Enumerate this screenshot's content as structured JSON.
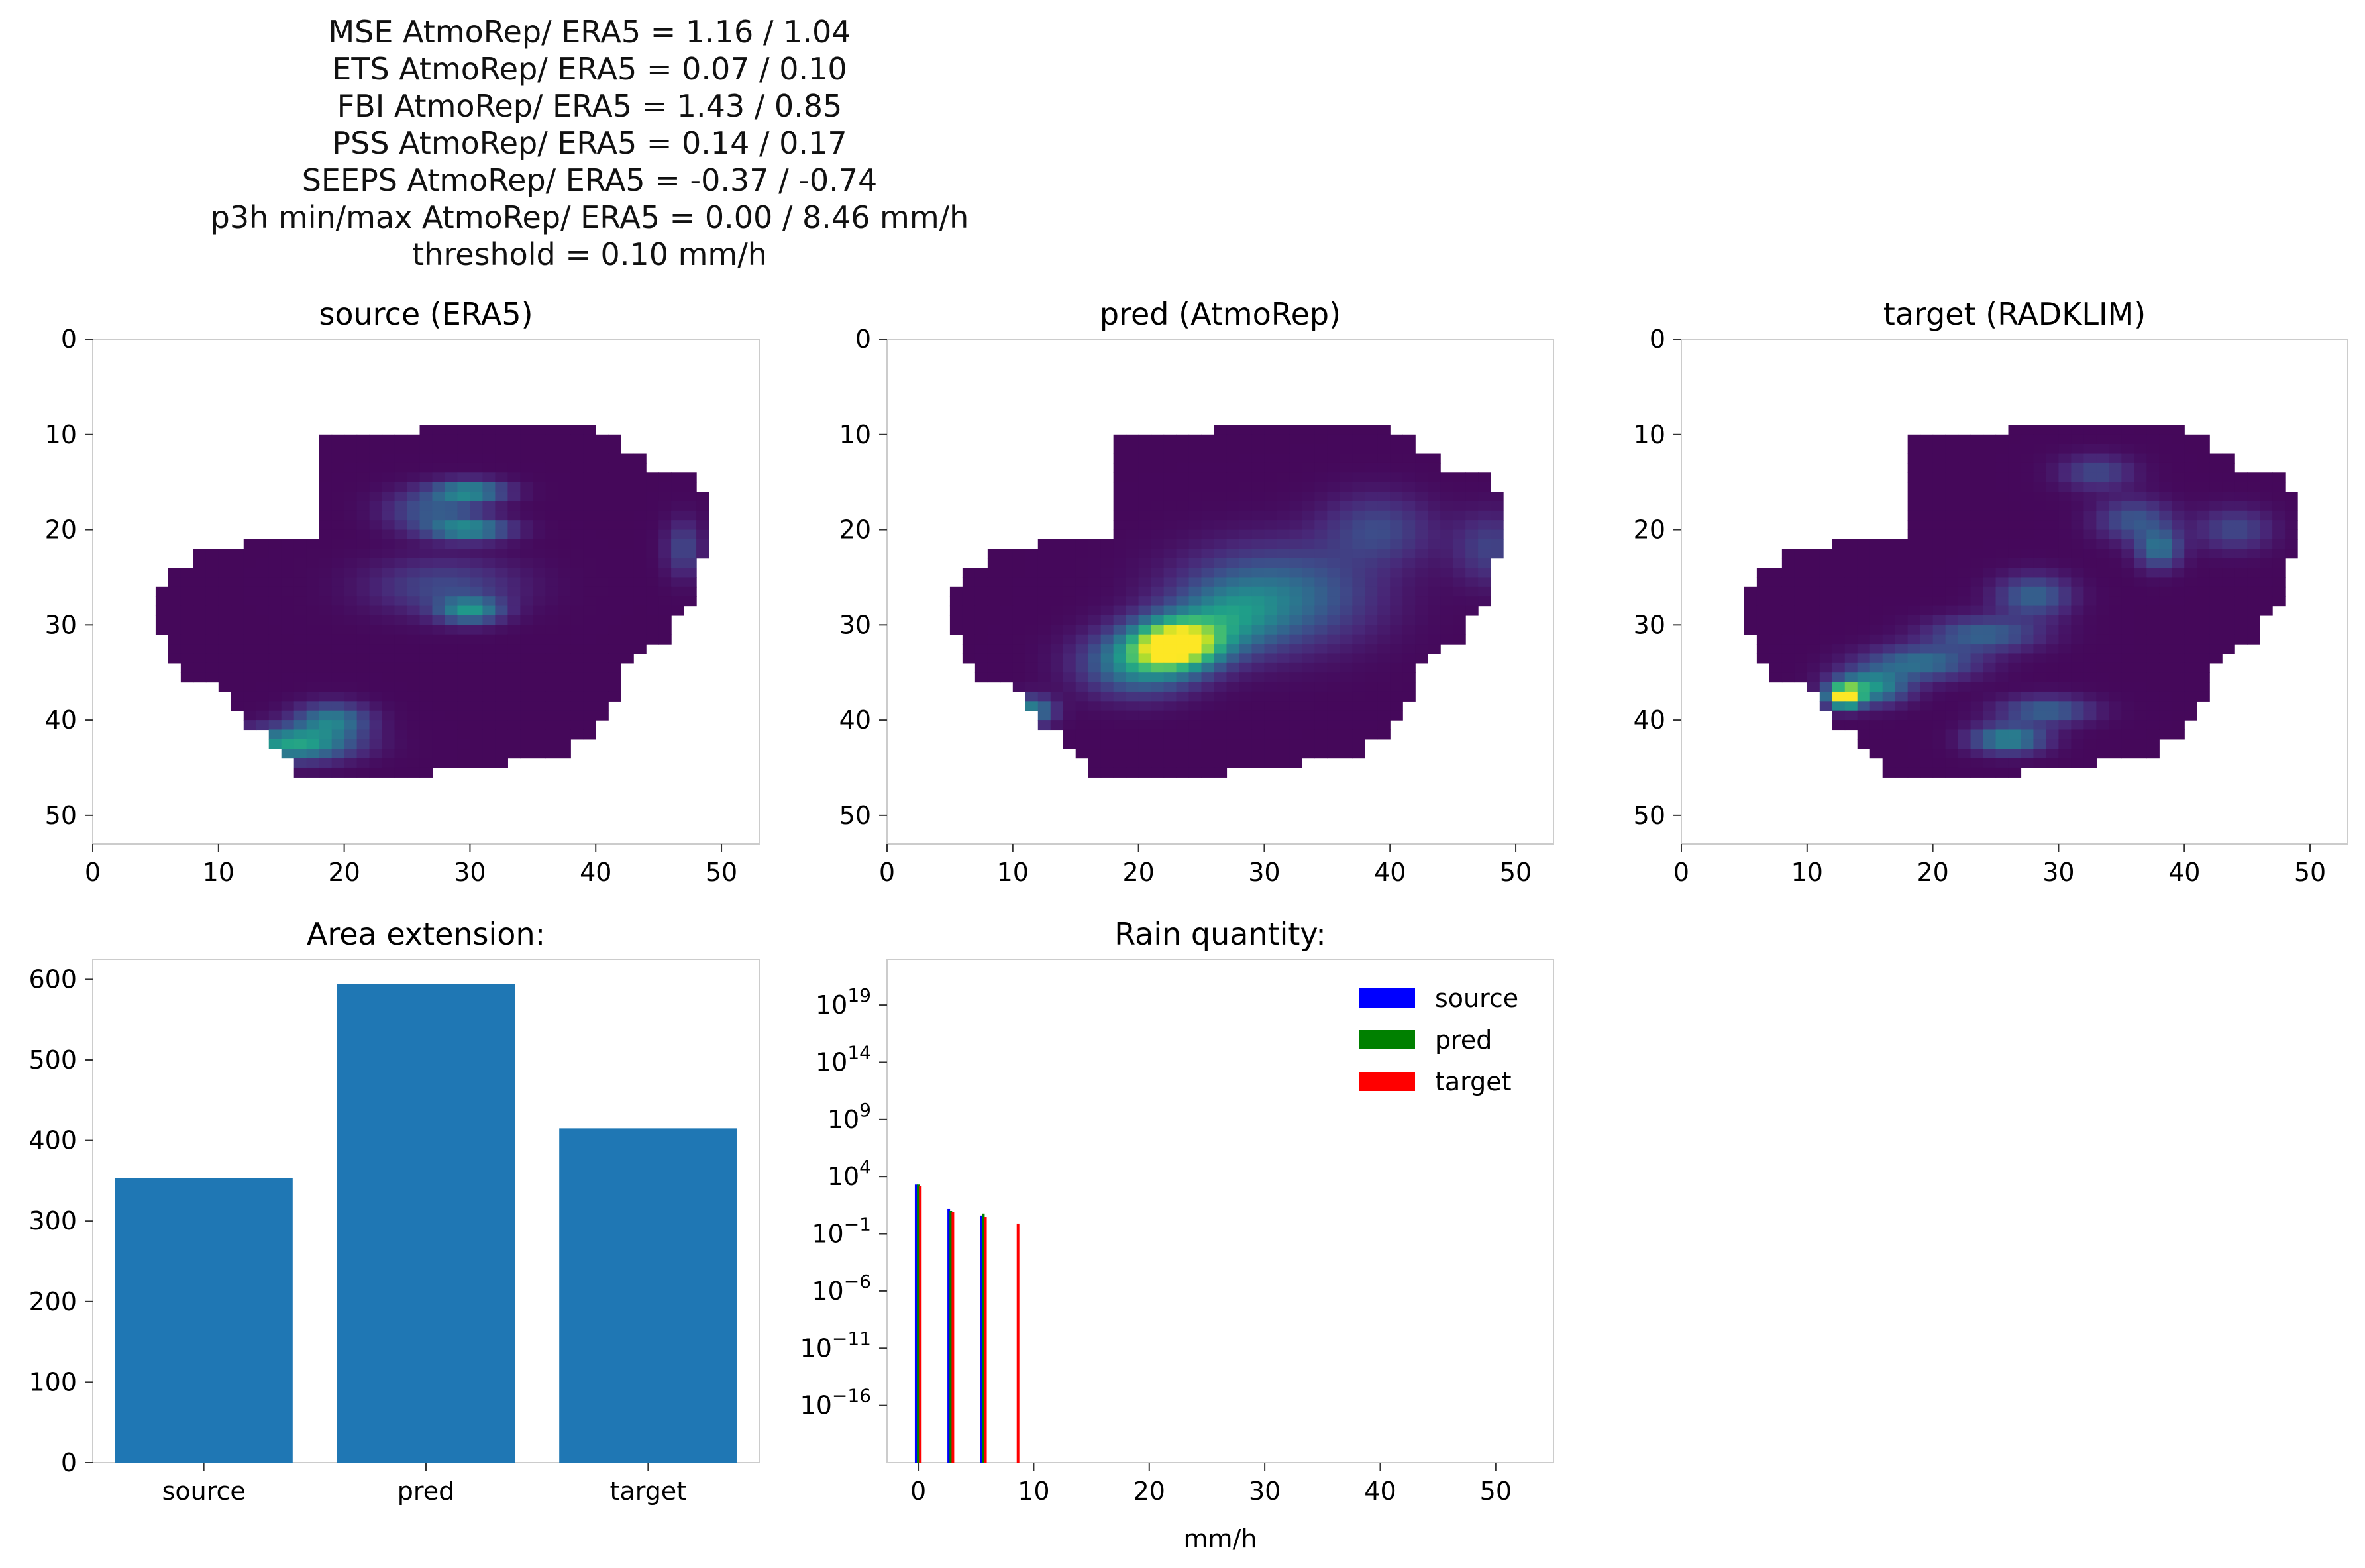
{
  "suptitle": [
    "MSE AtmoRep/ ERA5 = 1.16 / 1.04",
    "ETS AtmoRep/ ERA5 = 0.07 / 0.10",
    "FBI AtmoRep/ ERA5 = 1.43 / 0.85",
    "PSS AtmoRep/ ERA5 = 0.14 / 0.17",
    "SEEPS AtmoRep/ ERA5 = -0.37 / -0.74",
    "p3h min/max AtmoRep/ ERA5 = 0.00 / 8.46 mm/h",
    "threshold = 0.10 mm/h"
  ],
  "colors": {
    "heatmap_background": "#440154",
    "bar": "#1f77b4",
    "source": "#0000ff",
    "pred": "#008000",
    "target": "#ff0000",
    "axis": "#cccccc"
  },
  "chart_data": [
    {
      "type": "heatmap",
      "title": "source (ERA5)",
      "colormap": "viridis",
      "xlim": [
        0,
        53
      ],
      "ylim": [
        53,
        0
      ],
      "xticks": [
        "0",
        "10",
        "20",
        "30",
        "40",
        "50"
      ],
      "yticks": [
        "0",
        "10",
        "20",
        "30",
        "40",
        "50"
      ],
      "mask_rows": [
        [
          26,
          34,
          40
        ],
        [
          18,
          34,
          42
        ],
        [
          18,
          34,
          42
        ],
        [
          18,
          34,
          44
        ],
        [
          18,
          34,
          44
        ],
        [
          18,
          34,
          48
        ],
        [
          18,
          34,
          48
        ],
        [
          18,
          34,
          49
        ],
        [
          18,
          34,
          49
        ],
        [
          18,
          34,
          49
        ],
        [
          18,
          34,
          49
        ],
        [
          18,
          34,
          49
        ],
        [
          12,
          34,
          49
        ],
        [
          8,
          34,
          49
        ],
        [
          8,
          34,
          48
        ],
        [
          6,
          34,
          48
        ],
        [
          6,
          34,
          48
        ],
        [
          5,
          34,
          48
        ],
        [
          5,
          34,
          48
        ],
        [
          5,
          34,
          47
        ],
        [
          5,
          34,
          46
        ],
        [
          5,
          34,
          46
        ],
        [
          6,
          34,
          46
        ],
        [
          6,
          34,
          44
        ],
        [
          6,
          34,
          43
        ],
        [
          7,
          34,
          42
        ],
        [
          7,
          34,
          42
        ],
        [
          10,
          34,
          42
        ],
        [
          11,
          34,
          42
        ],
        [
          11,
          34,
          41
        ],
        [
          12,
          34,
          41
        ],
        [
          12,
          34,
          40
        ],
        [
          14,
          34,
          40
        ],
        [
          14,
          34,
          38
        ],
        [
          15,
          34,
          38
        ],
        [
          16,
          34,
          33
        ],
        [
          16,
          34,
          27
        ]
      ],
      "hotspots": [
        [
          16,
          42.5,
          3.2,
          1.2,
          0.55
        ],
        [
          19,
          40,
          2,
          1.2,
          0.4
        ],
        [
          30,
          16,
          2,
          0.8,
          0.45
        ],
        [
          30,
          20,
          2.2,
          0.8,
          0.45
        ],
        [
          27,
          18,
          2.5,
          1.5,
          0.25
        ],
        [
          30,
          28.5,
          1.7,
          0.9,
          0.45
        ],
        [
          28,
          26,
          4,
          2,
          0.2
        ],
        [
          47,
          22,
          1,
          2,
          0.2
        ]
      ]
    },
    {
      "type": "heatmap",
      "title": "pred (AtmoRep)",
      "colormap": "viridis",
      "xlim": [
        0,
        53
      ],
      "ylim": [
        53,
        0
      ],
      "xticks": [
        "0",
        "10",
        "20",
        "30",
        "40",
        "50"
      ],
      "yticks": [
        "0",
        "10",
        "20",
        "30",
        "40",
        "50"
      ],
      "mask_rows": [
        [
          26,
          34,
          40
        ],
        [
          18,
          34,
          42
        ],
        [
          18,
          34,
          42
        ],
        [
          18,
          34,
          44
        ],
        [
          18,
          34,
          44
        ],
        [
          18,
          34,
          48
        ],
        [
          18,
          34,
          48
        ],
        [
          18,
          34,
          49
        ],
        [
          18,
          34,
          49
        ],
        [
          18,
          34,
          49
        ],
        [
          18,
          34,
          49
        ],
        [
          18,
          34,
          49
        ],
        [
          12,
          34,
          49
        ],
        [
          8,
          34,
          49
        ],
        [
          8,
          34,
          48
        ],
        [
          6,
          34,
          48
        ],
        [
          6,
          34,
          48
        ],
        [
          5,
          34,
          48
        ],
        [
          5,
          34,
          48
        ],
        [
          5,
          34,
          47
        ],
        [
          5,
          34,
          46
        ],
        [
          5,
          34,
          46
        ],
        [
          6,
          34,
          46
        ],
        [
          6,
          34,
          44
        ],
        [
          6,
          34,
          43
        ],
        [
          7,
          34,
          42
        ],
        [
          7,
          34,
          42
        ],
        [
          10,
          34,
          42
        ],
        [
          11,
          34,
          42
        ],
        [
          11,
          34,
          41
        ],
        [
          12,
          34,
          41
        ],
        [
          12,
          34,
          40
        ],
        [
          14,
          34,
          40
        ],
        [
          14,
          34,
          38
        ],
        [
          15,
          34,
          38
        ],
        [
          16,
          34,
          33
        ],
        [
          16,
          34,
          27
        ]
      ],
      "hotspots": [
        [
          23,
          32,
          2.4,
          1.8,
          1
        ],
        [
          20,
          34,
          3,
          2.2,
          0.45
        ],
        [
          11.5,
          39,
          1.2,
          1,
          0.45
        ],
        [
          31,
          27,
          5,
          3.5,
          0.35
        ],
        [
          27,
          29.5,
          3,
          2.5,
          0.3
        ],
        [
          39,
          20,
          3,
          2.5,
          0.2
        ],
        [
          48,
          22,
          2,
          2.5,
          0.18
        ]
      ]
    },
    {
      "type": "heatmap",
      "title": "target (RADKLIM)",
      "colormap": "viridis",
      "xlim": [
        0,
        53
      ],
      "ylim": [
        53,
        0
      ],
      "xticks": [
        "0",
        "10",
        "20",
        "30",
        "40",
        "50"
      ],
      "yticks": [
        "0",
        "10",
        "20",
        "30",
        "40",
        "50"
      ],
      "mask_rows": [
        [
          26,
          34,
          40
        ],
        [
          18,
          34,
          42
        ],
        [
          18,
          34,
          42
        ],
        [
          18,
          34,
          44
        ],
        [
          18,
          34,
          44
        ],
        [
          18,
          34,
          48
        ],
        [
          18,
          34,
          48
        ],
        [
          18,
          34,
          49
        ],
        [
          18,
          34,
          49
        ],
        [
          18,
          34,
          49
        ],
        [
          18,
          34,
          49
        ],
        [
          18,
          34,
          49
        ],
        [
          12,
          34,
          49
        ],
        [
          8,
          34,
          49
        ],
        [
          8,
          34,
          48
        ],
        [
          6,
          34,
          48
        ],
        [
          6,
          34,
          48
        ],
        [
          5,
          34,
          48
        ],
        [
          5,
          34,
          48
        ],
        [
          5,
          34,
          47
        ],
        [
          5,
          34,
          46
        ],
        [
          5,
          34,
          46
        ],
        [
          6,
          34,
          46
        ],
        [
          6,
          34,
          44
        ],
        [
          6,
          34,
          43
        ],
        [
          7,
          34,
          42
        ],
        [
          7,
          34,
          42
        ],
        [
          10,
          34,
          42
        ],
        [
          11,
          34,
          42
        ],
        [
          11,
          34,
          41
        ],
        [
          12,
          34,
          41
        ],
        [
          12,
          34,
          40
        ],
        [
          14,
          34,
          40
        ],
        [
          14,
          34,
          38
        ],
        [
          15,
          34,
          38
        ],
        [
          16,
          34,
          33
        ],
        [
          16,
          34,
          27
        ]
      ],
      "hotspots": [
        [
          13,
          37.5,
          0.9,
          0.8,
          1
        ],
        [
          15,
          36.5,
          2,
          1.2,
          0.5
        ],
        [
          19,
          34,
          3,
          1.2,
          0.35
        ],
        [
          24,
          31,
          3,
          1.2,
          0.3
        ],
        [
          28,
          27,
          2,
          1.5,
          0.3
        ],
        [
          26,
          42,
          2,
          1,
          0.45
        ],
        [
          29,
          39,
          2.5,
          1,
          0.3
        ],
        [
          38,
          22,
          1.2,
          1.4,
          0.35
        ],
        [
          36,
          19,
          2,
          1.5,
          0.25
        ],
        [
          33,
          14,
          2,
          1.2,
          0.2
        ],
        [
          44,
          20,
          2,
          1.5,
          0.2
        ]
      ]
    },
    {
      "type": "bar",
      "title": "Area extension:",
      "categories": [
        "source",
        "pred",
        "target"
      ],
      "values": [
        353,
        594,
        415
      ],
      "ylim": [
        0,
        625
      ],
      "yticks": [
        "0",
        "100",
        "200",
        "300",
        "400",
        "500",
        "600"
      ]
    },
    {
      "type": "bar",
      "title": "Rain quantity:",
      "xlabel": "mm/h",
      "yscale": "log",
      "xlim": [
        -2.7,
        55
      ],
      "ylim_exp": [
        -21,
        23
      ],
      "xticks": [
        "0",
        "10",
        "20",
        "30",
        "40",
        "50"
      ],
      "ytick_exponents": [
        "19",
        "14",
        "9",
        "4",
        "−1",
        "−6",
        "−11",
        "−16"
      ],
      "legend": "top-right",
      "series": [
        {
          "name": "source",
          "bins": [
            0,
            2.82,
            5.64
          ],
          "values": [
            2000,
            15,
            4
          ]
        },
        {
          "name": "pred",
          "bins": [
            0,
            2.82,
            5.64
          ],
          "values": [
            2000,
            10,
            6
          ]
        },
        {
          "name": "target",
          "bins": [
            0,
            2.82,
            5.64,
            8.46
          ],
          "values": [
            1500,
            8,
            3,
            0.8
          ]
        }
      ]
    }
  ]
}
